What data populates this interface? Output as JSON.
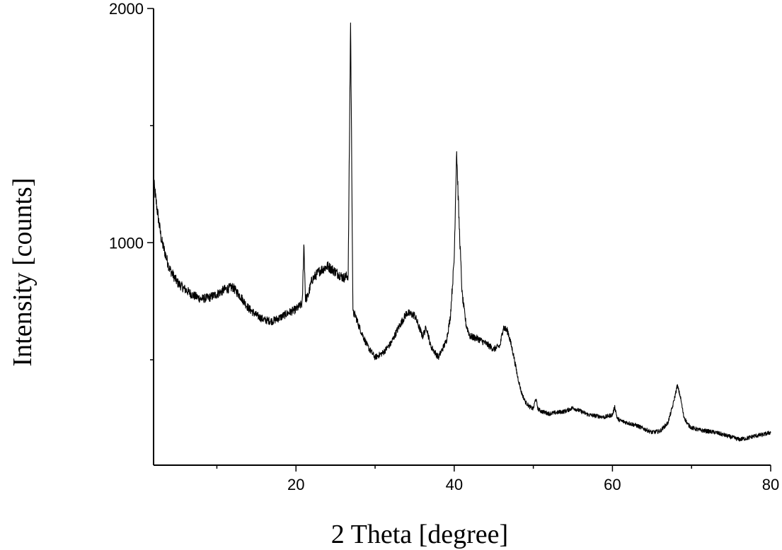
{
  "chart_data": {
    "type": "line",
    "title": "",
    "xlabel": "2 Theta [degree]",
    "ylabel": "Intensity [counts]",
    "xlim": [
      2,
      80
    ],
    "ylim": [
      50,
      2000
    ],
    "x_ticks": [
      10,
      20,
      30,
      40,
      50,
      60,
      70,
      80
    ],
    "x_tick_labels": [
      "20",
      "40",
      "60",
      "80"
    ],
    "y_ticks": [
      500,
      1000,
      1500,
      2000
    ],
    "y_tick_labels": [
      "1000",
      "2000"
    ],
    "grid": false,
    "series": [
      {
        "x": [
          2,
          2.5,
          3,
          4,
          5,
          6,
          7,
          8,
          9,
          10,
          11,
          12,
          13,
          14,
          15,
          16,
          17,
          18,
          19,
          20,
          20.8,
          21.0,
          21.2,
          21.5,
          22,
          23,
          24,
          25,
          26,
          26.6,
          26.9,
          27.2,
          27.5,
          28,
          29,
          30,
          31,
          32,
          33,
          34,
          35,
          36,
          36.5,
          37,
          38,
          39,
          39.5,
          40,
          40.3,
          40.6,
          41,
          41.5,
          42,
          43,
          44,
          45,
          45.8,
          46.2,
          46.8,
          47.5,
          48,
          48.5,
          49,
          49.5,
          50,
          50.3,
          50.6,
          51,
          52,
          53,
          54,
          55,
          56,
          57,
          58,
          59,
          60,
          60.3,
          60.6,
          61,
          62,
          63,
          64,
          65,
          66,
          67,
          67.6,
          68.2,
          68.6,
          69,
          69.5,
          70,
          71,
          72,
          73,
          74,
          75,
          76,
          77,
          78,
          79,
          80
        ],
        "y": [
          1260,
          1130,
          1010,
          890,
          830,
          800,
          775,
          760,
          765,
          780,
          800,
          810,
          770,
          720,
          690,
          670,
          665,
          680,
          700,
          715,
          740,
          1000,
          760,
          770,
          840,
          880,
          900,
          875,
          850,
          860,
          1950,
          700,
          690,
          640,
          560,
          510,
          530,
          570,
          640,
          700,
          690,
          600,
          640,
          560,
          510,
          580,
          680,
          930,
          1400,
          1100,
          780,
          650,
          600,
          590,
          570,
          545,
          560,
          640,
          620,
          520,
          430,
          360,
          320,
          300,
          290,
          335,
          290,
          280,
          270,
          275,
          280,
          295,
          280,
          265,
          260,
          255,
          265,
          300,
          250,
          240,
          230,
          220,
          205,
          190,
          195,
          230,
          300,
          390,
          340,
          260,
          225,
          210,
          200,
          195,
          190,
          180,
          170,
          160,
          165,
          175,
          180,
          190
        ]
      }
    ]
  }
}
